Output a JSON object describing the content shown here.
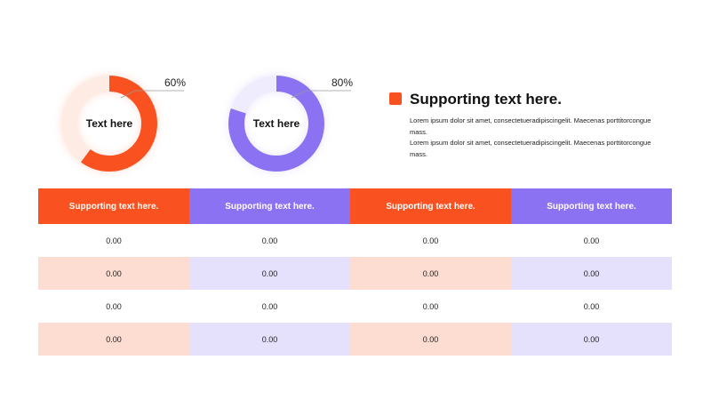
{
  "colors": {
    "orange": "#f9511f",
    "purple": "#8b72f2",
    "orange_track": "#fdebe4",
    "purple_track": "#efedfd",
    "orange_tint": "#fddcd1",
    "purple_tint": "#e5e1fd"
  },
  "chart_data": [
    {
      "type": "pie",
      "variant": "donut",
      "center_label": "Text here",
      "value_label": "60%",
      "values": [
        60,
        40
      ],
      "color": "#f9511f"
    },
    {
      "type": "pie",
      "variant": "donut",
      "center_label": "Text here",
      "value_label": "80%",
      "values": [
        80,
        20
      ],
      "color": "#8b72f2"
    }
  ],
  "legend": {
    "title": "Supporting text here.",
    "body": [
      "Lorem ipsum dolor sit amet, consectetueradipiscingelit. Maecenas porttitorcongue mass.",
      "Lorem ipsum dolor sit amet, consectetueradipiscingelit. Maecenas porttitorcongue mass."
    ]
  },
  "table": {
    "headers": [
      "Supporting text here.",
      "Supporting text here.",
      "Supporting text here.",
      "Supporting text here."
    ],
    "rows": [
      [
        "0.00",
        "0.00",
        "0.00",
        "0.00"
      ],
      [
        "0.00",
        "0.00",
        "0.00",
        "0.00"
      ],
      [
        "0.00",
        "0.00",
        "0.00",
        "0.00"
      ],
      [
        "0.00",
        "0.00",
        "0.00",
        "0.00"
      ]
    ]
  }
}
